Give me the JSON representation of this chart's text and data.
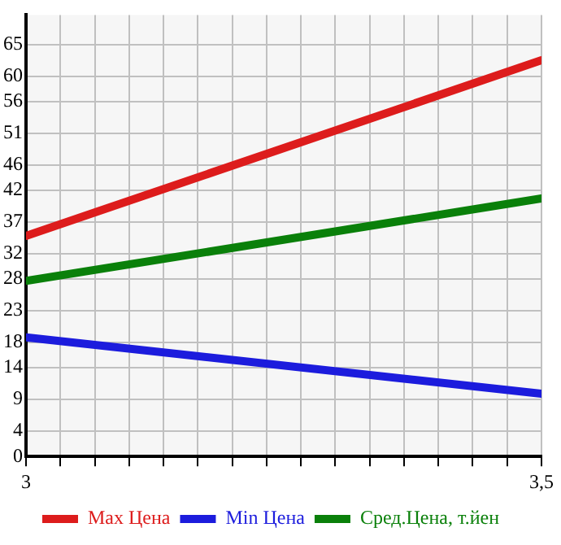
{
  "chart_data": {
    "type": "line",
    "x": [
      3,
      3.5
    ],
    "xlim": [
      3,
      3.5
    ],
    "xticks": [
      3,
      {
        "value": 3.0333,
        "label": null
      },
      {
        "value": 3.0667,
        "label": null
      },
      {
        "value": 3.1,
        "label": null
      },
      {
        "value": 3.1333,
        "label": null
      },
      {
        "value": 3.1667,
        "label": null
      },
      {
        "value": 3.2,
        "label": null
      },
      {
        "value": 3.2333,
        "label": null
      },
      {
        "value": 3.2667,
        "label": null
      },
      {
        "value": 3.3,
        "label": null
      },
      {
        "value": 3.3333,
        "label": null
      },
      {
        "value": 3.3667,
        "label": null
      },
      {
        "value": 3.4,
        "label": null
      },
      {
        "value": 3.4333,
        "label": null
      },
      {
        "value": 3.4667,
        "label": null
      },
      {
        "value": 3.5,
        "label": "3,5"
      }
    ],
    "ylim": [
      0,
      69.64
    ],
    "yticks": [
      0,
      4,
      9,
      14,
      18,
      23,
      28,
      32,
      37,
      42,
      46,
      51,
      56,
      60,
      65
    ],
    "series": [
      {
        "name": "Max Цена",
        "color": "#dd1c1c",
        "values": [
          34.8,
          62.5
        ]
      },
      {
        "name": "Min Цена",
        "color": "#1c1cdd",
        "values": [
          18.8,
          9.9
        ]
      },
      {
        "name": "Сред.Цена, т.йен",
        "color": "#0a800a",
        "values": [
          27.7,
          40.7
        ]
      }
    ],
    "grid": true,
    "legend": "bottom",
    "marker": "none",
    "line_style": "solid"
  }
}
